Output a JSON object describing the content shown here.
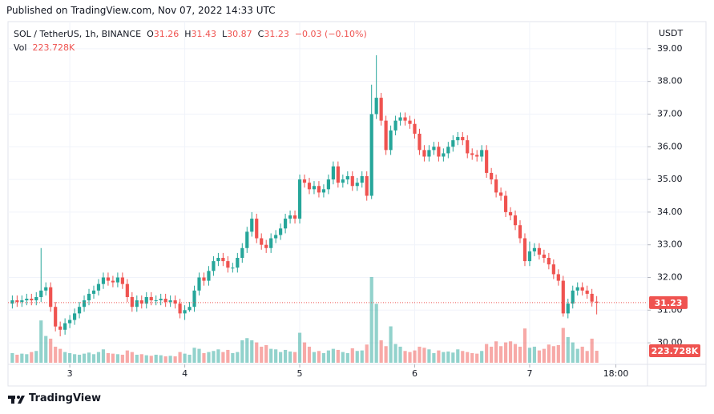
{
  "header": {
    "published": "Published on TradingView.com, Nov 07, 2022 14:33 UTC"
  },
  "chart_data": {
    "type": "candlestick",
    "symbol": "SOL / TetherUS, 1h, BINANCE",
    "currency": "USDT",
    "legend": {
      "open": "O",
      "high": "H",
      "low": "L",
      "close": "C",
      "change": "−0.03 (−0.10%)",
      "volume": "Vol"
    },
    "x": [
      -12,
      -11,
      -10,
      -9,
      -8,
      -7,
      -6,
      -5,
      -4,
      -3,
      -2,
      -1,
      0,
      1,
      2,
      3,
      4,
      5,
      6,
      7,
      8,
      9,
      10,
      11,
      12,
      13,
      14,
      15,
      16,
      17,
      18,
      19,
      20,
      21,
      22,
      23,
      24,
      25,
      26,
      27,
      28,
      29,
      30,
      31,
      32,
      33,
      34,
      35,
      36,
      37,
      38,
      39,
      40,
      41,
      42,
      43,
      44,
      45,
      46,
      47,
      48,
      49,
      50,
      51,
      52,
      53,
      54,
      55,
      56,
      57,
      58,
      59,
      60,
      61,
      62,
      63,
      64,
      65,
      66,
      67,
      68,
      69,
      70,
      71,
      72,
      73,
      74,
      75,
      76,
      77,
      78,
      79,
      80,
      81,
      82,
      83,
      84,
      85,
      86,
      87,
      88,
      89,
      90,
      91,
      92,
      93,
      94,
      95,
      96,
      97,
      98,
      99,
      100,
      101,
      102,
      103,
      104,
      105,
      106,
      107,
      108,
      109,
      110
    ],
    "open": [
      31.2,
      31.3,
      31.25,
      31.3,
      31.35,
      31.3,
      31.4,
      31.6,
      31.7,
      31.1,
      30.5,
      30.4,
      30.6,
      30.7,
      30.9,
      31.1,
      31.3,
      31.5,
      31.6,
      31.8,
      32.0,
      31.9,
      31.85,
      32.0,
      31.8,
      31.4,
      31.1,
      31.3,
      31.2,
      31.4,
      31.3,
      31.3,
      31.35,
      31.25,
      31.3,
      31.2,
      30.9,
      31.0,
      31.1,
      31.6,
      32.0,
      31.9,
      32.2,
      32.5,
      32.6,
      32.5,
      32.3,
      32.3,
      32.6,
      32.9,
      33.4,
      33.8,
      33.2,
      33.0,
      32.9,
      33.2,
      33.3,
      33.5,
      33.8,
      33.9,
      33.8,
      35.0,
      34.9,
      34.7,
      34.8,
      34.6,
      34.7,
      35.0,
      35.4,
      34.9,
      35.0,
      35.1,
      34.8,
      34.9,
      35.1,
      34.5,
      37.0,
      37.5,
      36.8,
      35.9,
      36.5,
      36.8,
      36.9,
      36.8,
      36.7,
      36.4,
      35.9,
      35.7,
      35.9,
      36.0,
      35.7,
      35.8,
      36.0,
      36.2,
      36.3,
      36.2,
      35.8,
      35.75,
      35.7,
      35.9,
      35.2,
      35.0,
      34.6,
      34.5,
      34.0,
      33.9,
      33.6,
      33.2,
      32.5,
      32.8,
      32.9,
      32.7,
      32.6,
      32.4,
      32.1,
      31.9,
      30.9,
      31.2,
      31.6,
      31.7,
      31.6,
      31.5,
      31.26
    ],
    "high": [
      31.45,
      31.45,
      31.45,
      31.5,
      31.5,
      31.55,
      32.9,
      31.85,
      31.85,
      31.25,
      30.65,
      30.75,
      30.85,
      31.05,
      31.25,
      31.45,
      31.65,
      31.75,
      31.95,
      32.15,
      32.15,
      32.05,
      32.15,
      32.15,
      31.95,
      31.55,
      31.45,
      31.45,
      31.55,
      31.55,
      31.45,
      31.5,
      31.5,
      31.45,
      31.45,
      31.35,
      31.15,
      31.25,
      31.75,
      32.15,
      32.15,
      32.35,
      32.65,
      32.75,
      32.75,
      32.65,
      32.45,
      32.75,
      33.05,
      33.55,
      34.0,
      33.95,
      33.35,
      33.15,
      33.35,
      33.45,
      33.65,
      33.95,
      34.05,
      34.05,
      35.15,
      35.15,
      35.05,
      34.95,
      34.95,
      34.85,
      35.15,
      35.55,
      35.55,
      35.15,
      35.25,
      35.25,
      35.05,
      35.25,
      35.25,
      37.9,
      38.8,
      37.65,
      36.95,
      36.65,
      36.95,
      37.05,
      37.05,
      36.95,
      36.85,
      36.55,
      36.05,
      36.05,
      36.15,
      36.15,
      35.95,
      36.15,
      36.35,
      36.45,
      36.45,
      36.35,
      35.95,
      35.9,
      36.05,
      36.05,
      35.35,
      35.15,
      34.75,
      34.65,
      34.15,
      34.05,
      33.75,
      33.35,
      33.1,
      33.05,
      33.05,
      32.85,
      32.75,
      32.55,
      32.25,
      32.05,
      31.35,
      31.75,
      31.85,
      31.85,
      31.75,
      31.65,
      31.43
    ],
    "low": [
      31.05,
      31.1,
      31.1,
      31.15,
      31.15,
      31.15,
      31.25,
      31.45,
      30.95,
      30.35,
      30.2,
      30.25,
      30.45,
      30.55,
      30.75,
      30.95,
      31.15,
      31.35,
      31.45,
      31.65,
      31.75,
      31.7,
      31.7,
      31.65,
      31.25,
      30.95,
      30.95,
      31.05,
      31.05,
      31.15,
      31.15,
      31.15,
      31.1,
      31.1,
      31.05,
      30.75,
      30.7,
      30.95,
      30.95,
      31.45,
      31.75,
      31.75,
      32.05,
      32.35,
      32.35,
      32.15,
      32.15,
      32.15,
      32.45,
      32.75,
      33.25,
      33.05,
      32.85,
      32.75,
      32.75,
      33.05,
      33.15,
      33.35,
      33.65,
      33.65,
      33.65,
      34.75,
      34.55,
      34.55,
      34.45,
      34.45,
      34.55,
      34.85,
      34.75,
      34.75,
      34.85,
      34.65,
      34.65,
      34.75,
      34.35,
      34.4,
      36.85,
      36.65,
      35.75,
      35.75,
      36.35,
      36.65,
      36.65,
      36.55,
      36.25,
      35.75,
      35.55,
      35.55,
      35.75,
      35.55,
      35.55,
      35.65,
      35.85,
      36.05,
      36.05,
      35.65,
      35.6,
      35.55,
      35.55,
      35.05,
      34.85,
      34.45,
      34.35,
      33.85,
      33.75,
      33.45,
      33.05,
      32.35,
      32.35,
      32.65,
      32.55,
      32.45,
      32.25,
      31.95,
      31.75,
      30.8,
      30.75,
      31.05,
      31.45,
      31.45,
      31.35,
      31.11,
      30.87
    ],
    "close": [
      31.3,
      31.25,
      31.3,
      31.35,
      31.3,
      31.4,
      31.6,
      31.7,
      31.1,
      30.5,
      30.4,
      30.6,
      30.7,
      30.9,
      31.1,
      31.3,
      31.5,
      31.6,
      31.8,
      32.0,
      31.9,
      31.85,
      32.0,
      31.8,
      31.4,
      31.1,
      31.3,
      31.2,
      31.4,
      31.3,
      31.3,
      31.35,
      31.25,
      31.3,
      31.2,
      30.9,
      31.0,
      31.1,
      31.6,
      32.0,
      31.9,
      32.2,
      32.5,
      32.6,
      32.5,
      32.3,
      32.3,
      32.6,
      32.9,
      33.4,
      33.8,
      33.2,
      33.0,
      32.9,
      33.2,
      33.3,
      33.5,
      33.8,
      33.9,
      33.8,
      35.0,
      34.9,
      34.7,
      34.8,
      34.6,
      34.7,
      35.0,
      35.4,
      34.9,
      35.0,
      35.1,
      34.8,
      34.9,
      35.1,
      34.5,
      37.0,
      37.5,
      36.8,
      35.9,
      36.5,
      36.8,
      36.9,
      36.8,
      36.7,
      36.4,
      35.9,
      35.7,
      35.9,
      36.0,
      35.7,
      35.8,
      36.0,
      36.2,
      36.3,
      36.2,
      35.8,
      35.75,
      35.7,
      35.9,
      35.2,
      35.0,
      34.6,
      34.5,
      34.0,
      33.9,
      33.6,
      33.2,
      32.5,
      32.8,
      32.9,
      32.7,
      32.6,
      32.4,
      32.1,
      31.9,
      30.9,
      31.2,
      31.6,
      31.7,
      31.6,
      31.5,
      31.26,
      31.23
    ],
    "volume": [
      180000,
      150000,
      170000,
      160000,
      200000,
      220000,
      790000,
      500000,
      450000,
      300000,
      260000,
      200000,
      180000,
      160000,
      150000,
      170000,
      190000,
      160000,
      200000,
      250000,
      180000,
      170000,
      160000,
      150000,
      230000,
      200000,
      150000,
      160000,
      140000,
      130000,
      150000,
      140000,
      120000,
      130000,
      120000,
      200000,
      170000,
      150000,
      280000,
      260000,
      180000,
      200000,
      220000,
      250000,
      200000,
      240000,
      180000,
      200000,
      420000,
      460000,
      420000,
      380000,
      300000,
      330000,
      260000,
      250000,
      200000,
      240000,
      210000,
      200000,
      560000,
      380000,
      300000,
      200000,
      220000,
      180000,
      230000,
      260000,
      240000,
      200000,
      180000,
      270000,
      220000,
      230000,
      340000,
      1600000,
      1100000,
      420000,
      310000,
      680000,
      350000,
      300000,
      220000,
      200000,
      230000,
      300000,
      280000,
      250000,
      180000,
      230000,
      200000,
      210000,
      190000,
      250000,
      220000,
      200000,
      180000,
      170000,
      220000,
      350000,
      300000,
      400000,
      310000,
      380000,
      400000,
      350000,
      300000,
      640000,
      280000,
      300000,
      230000,
      260000,
      340000,
      310000,
      330000,
      650000,
      480000,
      380000,
      260000,
      300000,
      220000,
      450000,
      223728
    ],
    "last_volume_label": "223.728K",
    "xlim": [
      -12.9,
      120.6
    ],
    "xticks": [
      {
        "value": 0,
        "label": "3"
      },
      {
        "value": 24,
        "label": "4"
      },
      {
        "value": 48,
        "label": "5"
      },
      {
        "value": 72,
        "label": "6"
      },
      {
        "value": 96,
        "label": "7"
      },
      {
        "value": 114,
        "label": "18:00"
      }
    ],
    "ylim": [
      29.39,
      39.83
    ],
    "yticks": [
      {
        "value": 30,
        "label": "30.00"
      },
      {
        "value": 31,
        "label": "31.00"
      },
      {
        "value": 32,
        "label": "32.00"
      },
      {
        "value": 33,
        "label": "33.00"
      },
      {
        "value": 34,
        "label": "34.00"
      },
      {
        "value": 35,
        "label": "35.00"
      },
      {
        "value": 36,
        "label": "36.00"
      },
      {
        "value": 37,
        "label": "37.00"
      },
      {
        "value": 38,
        "label": "38.00"
      },
      {
        "value": 39,
        "label": "39.00"
      }
    ],
    "grid": true,
    "up_color": "#26a69a",
    "down_color": "#ef5350"
  },
  "footer": {
    "brand": "TradingView"
  }
}
